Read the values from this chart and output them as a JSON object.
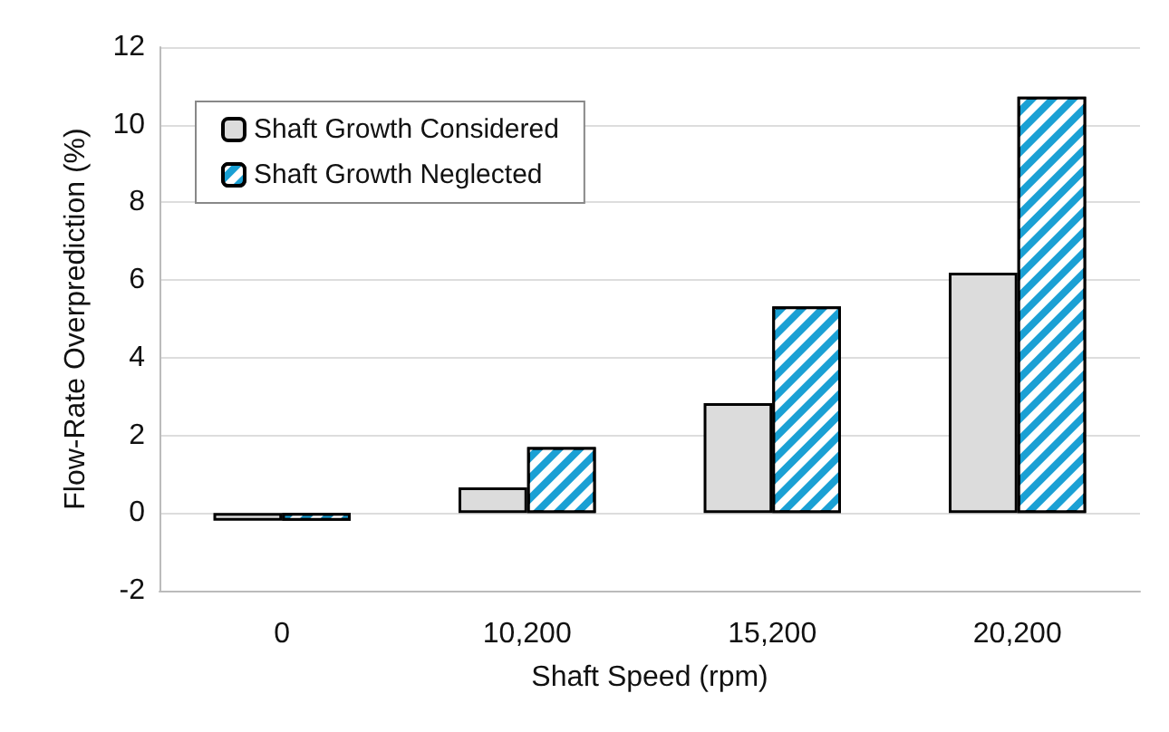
{
  "chart_data": {
    "type": "bar",
    "xlabel": "Shaft Speed (rpm)",
    "ylabel": "Flow-Rate Overprediction (%)",
    "categories": [
      "0",
      "10,200",
      "15,200",
      "20,200"
    ],
    "series": [
      {
        "name": "Shaft Growth Considered",
        "color": "#dcdcdc",
        "values": [
          -0.2,
          0.66,
          2.83,
          6.19
        ]
      },
      {
        "name": "Shaft Growth Neglected",
        "color": "#1aa0d4",
        "values": [
          -0.2,
          1.7,
          5.32,
          10.72
        ]
      }
    ],
    "ylim": [
      -2,
      12
    ],
    "yticks": [
      -2,
      0,
      2,
      4,
      6,
      8,
      10,
      12
    ],
    "grid": "y",
    "legend": "top left"
  }
}
